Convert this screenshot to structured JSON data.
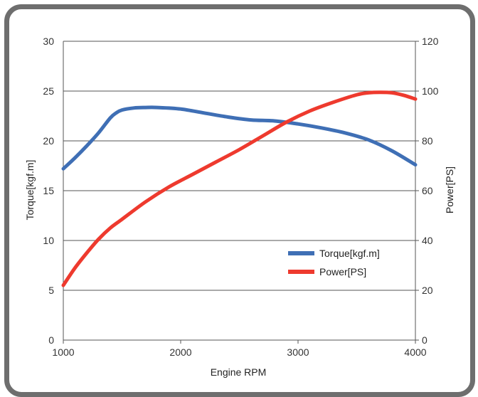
{
  "chart_data": {
    "type": "line",
    "title": "",
    "xlabel": "Engine RPM",
    "ylabel_left": "Torque[kgf.m]",
    "ylabel_right": "Power[PS]",
    "xlim": [
      1000,
      4000
    ],
    "ylim_left": [
      0,
      30
    ],
    "ylim_right": [
      0,
      120
    ],
    "x_ticks": [
      "1000",
      "2000",
      "3000",
      "4000"
    ],
    "y_left_ticks": [
      "0",
      "5",
      "10",
      "15",
      "20",
      "25",
      "30"
    ],
    "y_right_ticks": [
      "0",
      "20",
      "40",
      "60",
      "80",
      "100",
      "120"
    ],
    "grid": "horizontal",
    "legend_position": "center-right",
    "series": [
      {
        "name": "Torque[kgf.m]",
        "axis": "left",
        "color": "#3f6fb5",
        "x": [
          1000,
          1100,
          1200,
          1300,
          1400,
          1450,
          1500,
          1600,
          1700,
          1800,
          2000,
          2200,
          2400,
          2600,
          2800,
          3000,
          3200,
          3400,
          3600,
          3800,
          4000
        ],
        "y": [
          17.2,
          18.3,
          19.5,
          20.8,
          22.3,
          22.8,
          23.1,
          23.3,
          23.35,
          23.35,
          23.2,
          22.8,
          22.4,
          22.1,
          22.0,
          21.7,
          21.3,
          20.8,
          20.1,
          19.0,
          17.6
        ]
      },
      {
        "name": "Power[PS]",
        "axis": "right",
        "color": "#ee3a2e",
        "x": [
          1000,
          1100,
          1200,
          1300,
          1400,
          1500,
          1700,
          1900,
          2100,
          2300,
          2500,
          2700,
          2900,
          3100,
          3300,
          3500,
          3600,
          3700,
          3800,
          3900,
          4000
        ],
        "y": [
          22,
          29,
          35,
          40.5,
          45,
          48.5,
          55.5,
          61.5,
          66.5,
          71.5,
          76.5,
          82,
          87.5,
          92,
          95.5,
          98.5,
          99.3,
          99.5,
          99.3,
          98.3,
          96.8
        ]
      }
    ]
  }
}
